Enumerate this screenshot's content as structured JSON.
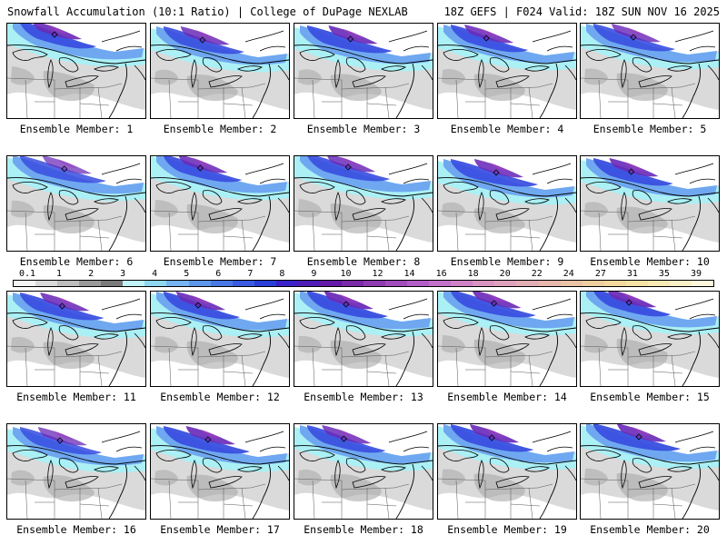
{
  "header": {
    "left": "Snowfall Accumulation (10:1 Ratio) | College of DuPage NEXLAB",
    "right": "18Z GEFS | F024 Valid: 18Z SUN NOV 16 2025"
  },
  "members": [
    {
      "label": "Ensemble Member: 1",
      "intensity": 0.85
    },
    {
      "label": "Ensemble Member: 2",
      "intensity": 0.75
    },
    {
      "label": "Ensemble Member: 3",
      "intensity": 0.85
    },
    {
      "label": "Ensemble Member: 4",
      "intensity": 0.8
    },
    {
      "label": "Ensemble Member: 5",
      "intensity": 0.7
    },
    {
      "label": "Ensemble Member: 6",
      "intensity": 0.55
    },
    {
      "label": "Ensemble Member: 7",
      "intensity": 0.8
    },
    {
      "label": "Ensemble Member: 8",
      "intensity": 0.75
    },
    {
      "label": "Ensemble Member: 9",
      "intensity": 0.8
    },
    {
      "label": "Ensemble Member: 10",
      "intensity": 0.85
    },
    {
      "label": "Ensemble Member: 11",
      "intensity": 0.8
    },
    {
      "label": "Ensemble Member: 12",
      "intensity": 0.85
    },
    {
      "label": "Ensemble Member: 13",
      "intensity": 0.9
    },
    {
      "label": "Ensemble Member: 14",
      "intensity": 0.85
    },
    {
      "label": "Ensemble Member: 15",
      "intensity": 0.9
    },
    {
      "label": "Ensemble Member: 16",
      "intensity": 0.6
    },
    {
      "label": "Ensemble Member: 17",
      "intensity": 0.85
    },
    {
      "label": "Ensemble Member: 18",
      "intensity": 0.75
    },
    {
      "label": "Ensemble Member: 19",
      "intensity": 0.85
    },
    {
      "label": "Ensemble Member: 20",
      "intensity": 0.85
    }
  ],
  "colorbar": {
    "ticks": [
      "0.1",
      "1",
      "2",
      "3",
      "4",
      "5",
      "6",
      "7",
      "8",
      "9",
      "10",
      "12",
      "14",
      "16",
      "18",
      "20",
      "22",
      "24",
      "27",
      "31",
      "35",
      "39"
    ],
    "colors": [
      "#f4f4f4",
      "#d9d9d9",
      "#bdbdbd",
      "#9a9a9a",
      "#7a7a7a",
      "#bff3f7",
      "#8fd8f2",
      "#76b5f2",
      "#5e96ec",
      "#4a78e6",
      "#3a5be0",
      "#2a3fd8",
      "#3a20c8",
      "#4e1bb8",
      "#6519a8",
      "#7a2aa8",
      "#8e3bb2",
      "#a24cbc",
      "#b35ec6",
      "#c270c8",
      "#cf82c6",
      "#d994c2",
      "#dfa2bd",
      "#e3adb5",
      "#e7b8ad",
      "#ebc3a6",
      "#efcea0",
      "#f3d99b",
      "#f6e2a5",
      "#f8eab4",
      "#fbf1c6",
      "#fdf8dd"
    ],
    "band_colors": {
      "light_gray": "#d4d4d4",
      "mid_gray": "#a8a8a8",
      "light_cyan": "#aaf0f5",
      "light_blue": "#6fa8f0",
      "blue": "#3a50e0",
      "purple": "#6a2ab8",
      "magenta": "#9a3ec0"
    }
  }
}
